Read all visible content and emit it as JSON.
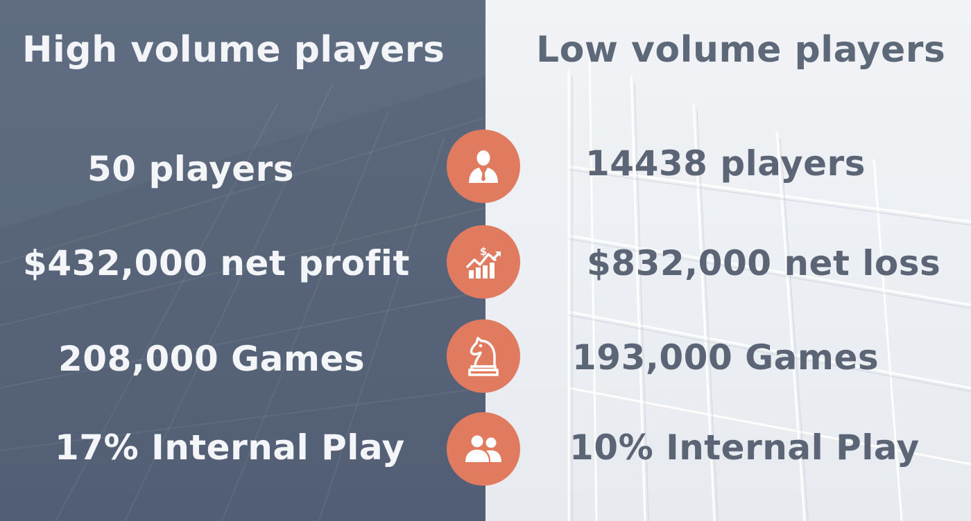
{
  "left": {
    "title": "High volume players",
    "stats": {
      "players": "50 players",
      "profit": "$432,000 net profit",
      "games": "208,000 Games",
      "internal": "17% Internal Play"
    }
  },
  "right": {
    "title": "Low volume players",
    "stats": {
      "players": "14438 players",
      "profit": "$832,000 net loss",
      "games": "193,000 Games",
      "internal": "10% Internal Play"
    }
  },
  "icons": [
    "businessman-icon",
    "money-growth-chart-icon",
    "chess-knight-icon",
    "users-group-icon"
  ],
  "colors": {
    "left_panel": "#5d6a7e",
    "right_panel": "#eef0f3",
    "accent": "#e07b5f",
    "left_text": "#f4f5f8",
    "right_text": "#5b6576"
  }
}
